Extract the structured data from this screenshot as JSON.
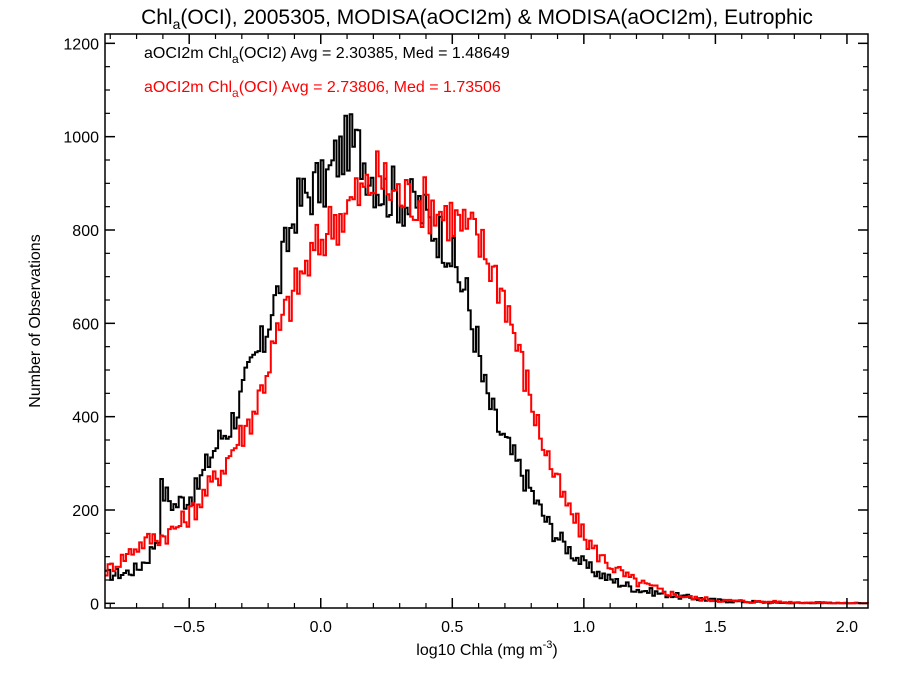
{
  "chart_data": {
    "type": "line",
    "title": {
      "main": "Chl",
      "sub": "a",
      "rest": "(OCI), 2005305, MODISA(aOCI2m) & MODISA(aOCI2m), Eutrophic"
    },
    "xlabel": {
      "text": "log10 Chla (mg m",
      "sup": "-3",
      "tail": ")"
    },
    "ylabel": "Number of Observations",
    "xlim": [
      -0.82,
      2.08
    ],
    "ylim": [
      -10,
      1220
    ],
    "x_tick_labels": [
      "−0.5",
      "0.0",
      "0.5",
      "1.0",
      "1.5",
      "2.0"
    ],
    "x_ticks": [
      -0.5,
      0.0,
      0.5,
      1.0,
      1.5,
      2.0
    ],
    "y_tick_labels": [
      "0",
      "200",
      "400",
      "600",
      "800",
      "1000",
      "1200"
    ],
    "y_ticks": [
      0,
      200,
      400,
      600,
      800,
      1000,
      1200
    ],
    "step": "histogram",
    "bin_width": 0.01,
    "legend_position": "top-left",
    "series": [
      {
        "color": "#000000",
        "legend": {
          "prefix": "aOCI2m Chl",
          "sub": "a",
          "rest": "(OCI2) Avg = 2.30385, Med = 1.48649"
        },
        "x": [
          -0.82,
          -0.75,
          -0.7,
          -0.66,
          -0.62,
          -0.61,
          -0.59,
          -0.56,
          -0.52,
          -0.48,
          -0.45,
          -0.42,
          -0.38,
          -0.35,
          -0.32,
          -0.29,
          -0.27,
          -0.25,
          -0.22,
          -0.2,
          -0.17,
          -0.15,
          -0.12,
          -0.1,
          -0.07,
          -0.05,
          -0.02,
          0.0,
          0.03,
          0.05,
          0.08,
          0.1,
          0.12,
          0.14,
          0.16,
          0.19,
          0.21,
          0.24,
          0.27,
          0.3,
          0.33,
          0.36,
          0.39,
          0.42,
          0.45,
          0.48,
          0.5,
          0.52,
          0.55,
          0.57,
          0.59,
          0.61,
          0.63,
          0.66,
          0.7,
          0.74,
          0.78,
          0.82,
          0.86,
          0.9,
          0.95,
          1.0,
          1.05,
          1.1,
          1.15,
          1.2,
          1.25,
          1.3,
          1.4,
          1.5,
          1.6,
          1.7,
          1.8,
          1.9,
          2.0,
          2.08
        ],
        "y": [
          60,
          65,
          75,
          100,
          150,
          245,
          230,
          210,
          225,
          240,
          280,
          320,
          360,
          380,
          420,
          470,
          500,
          530,
          560,
          620,
          660,
          730,
          800,
          850,
          870,
          880,
          900,
          890,
          920,
          950,
          970,
          990,
          980,
          975,
          950,
          920,
          900,
          880,
          880,
          870,
          850,
          860,
          830,
          810,
          790,
          770,
          730,
          700,
          660,
          600,
          560,
          480,
          440,
          390,
          340,
          300,
          260,
          210,
          170,
          140,
          110,
          80,
          65,
          50,
          40,
          30,
          25,
          20,
          12,
          6,
          4,
          2,
          1,
          1,
          0,
          0
        ]
      },
      {
        "color": "#ff0000",
        "legend": {
          "prefix": "aOCI2m Chl",
          "sub": "a",
          "rest": "(OCI) Avg = 2.73806, Med = 1.73506"
        },
        "x": [
          -0.82,
          -0.76,
          -0.72,
          -0.68,
          -0.64,
          -0.6,
          -0.56,
          -0.52,
          -0.48,
          -0.44,
          -0.4,
          -0.36,
          -0.32,
          -0.29,
          -0.26,
          -0.23,
          -0.2,
          -0.17,
          -0.14,
          -0.11,
          -0.08,
          -0.05,
          -0.02,
          0.01,
          0.04,
          0.07,
          0.1,
          0.13,
          0.16,
          0.19,
          0.22,
          0.25,
          0.28,
          0.31,
          0.34,
          0.37,
          0.4,
          0.43,
          0.46,
          0.49,
          0.52,
          0.55,
          0.58,
          0.61,
          0.64,
          0.67,
          0.7,
          0.73,
          0.76,
          0.79,
          0.82,
          0.85,
          0.88,
          0.92,
          0.96,
          1.0,
          1.05,
          1.1,
          1.15,
          1.2,
          1.25,
          1.3,
          1.35,
          1.4,
          1.5,
          1.6,
          1.7,
          1.8,
          1.9,
          2.0,
          2.08
        ],
        "y": [
          70,
          95,
          115,
          130,
          140,
          145,
          160,
          180,
          205,
          240,
          270,
          310,
          350,
          375,
          410,
          460,
          520,
          570,
          620,
          660,
          700,
          730,
          760,
          790,
          820,
          830,
          850,
          870,
          880,
          900,
          920,
          890,
          880,
          870,
          870,
          865,
          855,
          850,
          835,
          830,
          815,
          800,
          790,
          760,
          730,
          690,
          650,
          580,
          510,
          450,
          380,
          330,
          280,
          220,
          180,
          140,
          105,
          80,
          60,
          45,
          35,
          25,
          18,
          12,
          7,
          4,
          3,
          2,
          1,
          0,
          0
        ]
      }
    ]
  }
}
